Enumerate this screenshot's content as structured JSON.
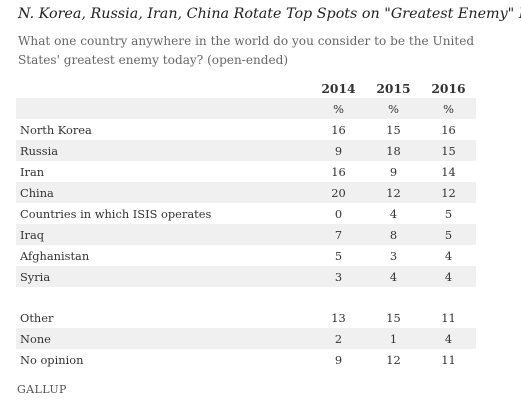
{
  "logo": "GALLUP",
  "chart_data": {
    "type": "table",
    "title": "N. Korea, Russia, Iran, China Rotate Top Spots on \"Greatest Enemy\" List",
    "subtitle": "What one country anywhere in the world do you consider to be the United States' greatest enemy today? (open-ended)",
    "columns": [
      "2014",
      "2015",
      "2016"
    ],
    "unit_row": [
      "%",
      "%",
      "%"
    ],
    "rows": [
      {
        "label": "North Korea",
        "values": [
          "16",
          "15",
          "16"
        ]
      },
      {
        "label": "Russia",
        "values": [
          "9",
          "18",
          "15"
        ]
      },
      {
        "label": "Iran",
        "values": [
          "16",
          "9",
          "14"
        ]
      },
      {
        "label": "China",
        "values": [
          "20",
          "12",
          "12"
        ]
      },
      {
        "label": "Countries in which ISIS operates",
        "values": [
          "0",
          "4",
          "5"
        ]
      },
      {
        "label": "Iraq",
        "values": [
          "7",
          "8",
          "5"
        ]
      },
      {
        "label": "Afghanistan",
        "values": [
          "5",
          "3",
          "4"
        ]
      },
      {
        "label": "Syria",
        "values": [
          "3",
          "4",
          "4"
        ]
      }
    ],
    "other_rows": [
      {
        "label": "Other",
        "values": [
          "13",
          "15",
          "11"
        ]
      },
      {
        "label": "None",
        "values": [
          "2",
          "1",
          "4"
        ]
      },
      {
        "label": "No opinion",
        "values": [
          "9",
          "12",
          "11"
        ]
      }
    ]
  }
}
